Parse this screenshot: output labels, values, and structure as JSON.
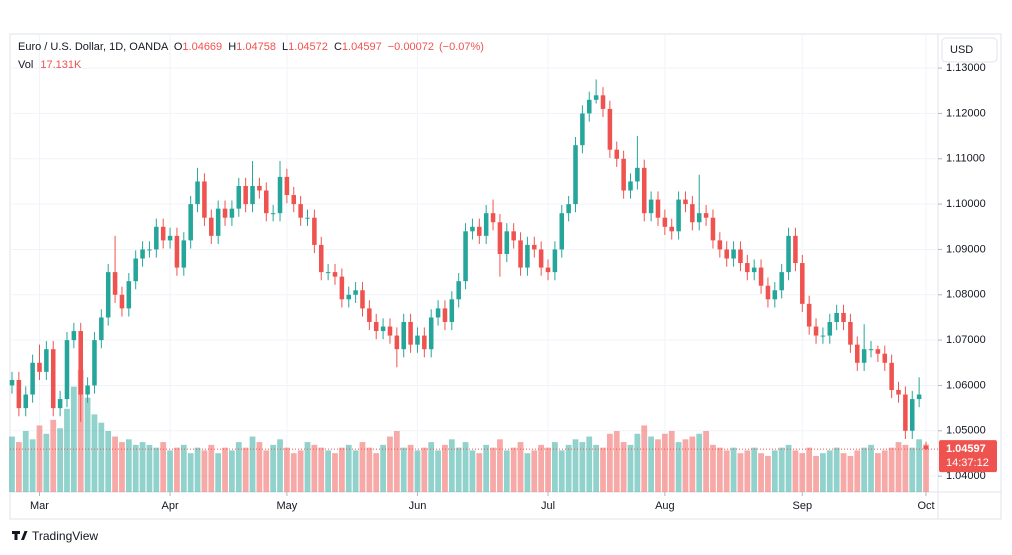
{
  "chart_data": {
    "type": "candlestick",
    "symbol": "Euro / U.S. Dollar, 1D, OANDA",
    "open_prefix": "O",
    "high_prefix": "H",
    "low_prefix": "L",
    "close_prefix": "C",
    "change": {
      "value": -0.00072,
      "label": "−0.00072"
    },
    "change_pct": {
      "value": -0.07,
      "label": "(−0.07%)"
    },
    "volume_prefix": "Vol",
    "volume_label": "17.131K",
    "currency": "USD",
    "countdown": "14:37:12",
    "brand": "TradingView",
    "up_color": "#26a69a",
    "down_color": "#ef5350",
    "grid": true,
    "ylim": [
      1.0365,
      1.1373
    ],
    "yticks": [
      {
        "value": 1.04,
        "label": "1.04000"
      },
      {
        "value": 1.05,
        "label": "1.05000"
      },
      {
        "value": 1.06,
        "label": "1.06000"
      },
      {
        "value": 1.07,
        "label": "1.07000"
      },
      {
        "value": 1.08,
        "label": "1.08000"
      },
      {
        "value": 1.09,
        "label": "1.09000"
      },
      {
        "value": 1.1,
        "label": "1.10000"
      },
      {
        "value": 1.11,
        "label": "1.11000"
      },
      {
        "value": 1.12,
        "label": "1.12000"
      },
      {
        "value": 1.13,
        "label": "1.13000"
      }
    ],
    "xticks": [
      {
        "value": 4,
        "label": "Mar"
      },
      {
        "value": 23,
        "label": "Apr"
      },
      {
        "value": 40,
        "label": "May"
      },
      {
        "value": 59,
        "label": "Jun"
      },
      {
        "value": 78,
        "label": "Jul"
      },
      {
        "value": 95,
        "label": "Aug"
      },
      {
        "value": 115,
        "label": "Sep"
      },
      {
        "value": 133,
        "label": "Oct"
      }
    ],
    "open": [
      1.06,
      1.0612,
      1.055,
      1.058,
      1.065,
      1.063,
      1.068,
      1.055,
      1.057,
      1.07,
      1.072,
      1.058,
      1.06,
      1.07,
      1.075,
      1.085,
      1.08,
      1.077,
      1.083,
      1.088,
      1.09,
      1.09,
      1.095,
      1.092,
      1.093,
      1.086,
      1.092,
      1.1,
      1.105,
      1.097,
      1.093,
      1.099,
      1.097,
      1.099,
      1.104,
      1.1,
      1.104,
      1.103,
      1.098,
      1.098,
      1.106,
      1.102,
      1.1,
      1.097,
      1.097,
      1.091,
      1.085,
      1.085,
      1.084,
      1.079,
      1.08,
      1.081,
      1.077,
      1.074,
      1.072,
      1.073,
      1.071,
      1.068,
      1.074,
      1.069,
      1.071,
      1.068,
      1.075,
      1.077,
      1.074,
      1.079,
      1.083,
      1.094,
      1.095,
      1.093,
      1.098,
      1.096,
      1.089,
      1.094,
      1.092,
      1.086,
      1.091,
      1.09,
      1.086,
      1.085,
      1.09,
      1.098,
      1.1,
      1.113,
      1.12,
      1.123,
      1.124,
      1.121,
      1.112,
      1.11,
      1.103,
      1.105,
      1.108,
      1.098,
      1.101,
      1.097,
      1.095,
      1.094,
      1.101,
      1.1,
      1.096,
      1.098,
      1.097,
      1.092,
      1.09,
      1.088,
      1.09,
      1.087,
      1.085,
      1.086,
      1.082,
      1.079,
      1.081,
      1.085,
      1.093,
      1.087,
      1.078,
      1.073,
      1.071,
      1.071,
      1.074,
      1.076,
      1.074,
      1.069,
      1.065,
      1.068,
      1.068,
      1.067,
      1.065,
      1.059,
      1.058,
      1.05,
      1.057,
      1.04669
    ],
    "high": [
      1.063,
      1.063,
      1.0598,
      1.0668,
      1.069,
      1.0698,
      1.0698,
      1.0588,
      1.0718,
      1.0738,
      1.0738,
      1.0618,
      1.0718,
      1.0768,
      1.0868,
      1.093,
      1.0818,
      1.0848,
      1.0898,
      1.0918,
      1.0918,
      1.0968,
      1.0968,
      1.0948,
      1.0948,
      1.0938,
      1.1018,
      1.108,
      1.1068,
      1.0988,
      1.1008,
      1.1008,
      1.1008,
      1.1058,
      1.1058,
      1.1095,
      1.1058,
      1.1048,
      1.0998,
      1.1095,
      1.1078,
      1.1038,
      1.1018,
      1.0988,
      1.0988,
      1.0928,
      1.0868,
      1.0868,
      1.0858,
      1.0818,
      1.0828,
      1.0828,
      1.0788,
      1.0758,
      1.0748,
      1.0748,
      1.0728,
      1.0758,
      1.0758,
      1.0728,
      1.0728,
      1.0768,
      1.0788,
      1.0788,
      1.0808,
      1.0848,
      1.0958,
      1.0968,
      1.0968,
      1.0998,
      1.101,
      1.0978,
      1.0958,
      1.0958,
      1.0938,
      1.0928,
      1.0928,
      1.0918,
      1.0878,
      1.0918,
      1.0998,
      1.1018,
      1.1148,
      1.1218,
      1.1248,
      1.1275,
      1.1258,
      1.1228,
      1.1138,
      1.1118,
      1.1068,
      1.115,
      1.1098,
      1.1028,
      1.1028,
      1.0988,
      1.0968,
      1.1028,
      1.1028,
      1.1018,
      1.1065,
      1.0998,
      1.0988,
      1.0938,
      1.0918,
      1.0918,
      1.0918,
      1.0888,
      1.0878,
      1.0878,
      1.0838,
      1.0828,
      1.0868,
      1.0948,
      1.0948,
      1.0888,
      1.0798,
      1.0748,
      1.0728,
      1.0758,
      1.0778,
      1.0778,
      1.0758,
      1.0708,
      1.0735,
      1.0698,
      1.0688,
      1.0688,
      1.0668,
      1.0608,
      1.0598,
      1.0588,
      1.0618,
      1.04758
    ],
    "low": [
      1.0582,
      1.0532,
      1.0532,
      1.0562,
      1.0612,
      1.0612,
      1.0532,
      1.0532,
      1.0552,
      1.0682,
      1.052,
      1.0562,
      1.0582,
      1.0682,
      1.0732,
      1.0782,
      1.0752,
      1.0752,
      1.0812,
      1.0862,
      1.0882,
      1.0882,
      1.0902,
      1.0902,
      1.0842,
      1.0842,
      1.0902,
      1.0982,
      1.0952,
      1.0912,
      1.0912,
      1.0952,
      1.0952,
      1.0972,
      1.0982,
      1.0982,
      1.1012,
      1.0962,
      1.0962,
      1.0962,
      1.1002,
      1.0982,
      1.0952,
      1.0952,
      1.0892,
      1.0832,
      1.0832,
      1.0822,
      1.0772,
      1.0772,
      1.0782,
      1.0752,
      1.0722,
      1.0702,
      1.0702,
      1.0692,
      1.064,
      1.0662,
      1.0672,
      1.0672,
      1.0662,
      1.0662,
      1.0732,
      1.0722,
      1.0722,
      1.0772,
      1.0812,
      1.0922,
      1.0912,
      1.0912,
      1.0942,
      1.084,
      1.0872,
      1.0902,
      1.0842,
      1.0842,
      1.0882,
      1.0842,
      1.0832,
      1.0832,
      1.0882,
      1.0962,
      1.0982,
      1.1112,
      1.1182,
      1.1222,
      1.1192,
      1.1102,
      1.1082,
      1.1012,
      1.1012,
      1.1032,
      1.0962,
      1.0962,
      1.0952,
      1.0932,
      1.0922,
      1.0922,
      1.0982,
      1.0942,
      1.0942,
      1.0952,
      1.0902,
      1.0882,
      1.0862,
      1.0862,
      1.0852,
      1.0832,
      1.0832,
      1.0802,
      1.0772,
      1.0772,
      1.0792,
      1.0832,
      1.0852,
      1.0762,
      1.0712,
      1.0692,
      1.0692,
      1.0692,
      1.0722,
      1.0722,
      1.0672,
      1.0632,
      1.0632,
      1.0662,
      1.0652,
      1.0632,
      1.0572,
      1.0562,
      1.0482,
      1.0482,
      1.0552,
      1.04572
    ],
    "close": [
      1.0612,
      1.055,
      1.058,
      1.065,
      1.063,
      1.068,
      1.055,
      1.057,
      1.07,
      1.072,
      1.058,
      1.06,
      1.07,
      1.075,
      1.085,
      1.08,
      1.077,
      1.083,
      1.088,
      1.09,
      1.09,
      1.095,
      1.092,
      1.093,
      1.086,
      1.092,
      1.1,
      1.105,
      1.097,
      1.093,
      1.099,
      1.097,
      1.099,
      1.104,
      1.1,
      1.104,
      1.103,
      1.098,
      1.098,
      1.106,
      1.102,
      1.1,
      1.097,
      1.097,
      1.091,
      1.085,
      1.085,
      1.084,
      1.079,
      1.08,
      1.081,
      1.077,
      1.074,
      1.072,
      1.073,
      1.071,
      1.068,
      1.074,
      1.069,
      1.071,
      1.068,
      1.075,
      1.077,
      1.074,
      1.079,
      1.083,
      1.094,
      1.095,
      1.093,
      1.098,
      1.096,
      1.089,
      1.094,
      1.092,
      1.086,
      1.091,
      1.09,
      1.086,
      1.085,
      1.09,
      1.098,
      1.1,
      1.113,
      1.12,
      1.123,
      1.124,
      1.121,
      1.112,
      1.11,
      1.103,
      1.105,
      1.108,
      1.098,
      1.101,
      1.097,
      1.095,
      1.094,
      1.101,
      1.1,
      1.096,
      1.098,
      1.097,
      1.092,
      1.09,
      1.088,
      1.09,
      1.087,
      1.085,
      1.086,
      1.082,
      1.079,
      1.081,
      1.085,
      1.093,
      1.087,
      1.078,
      1.073,
      1.071,
      1.071,
      1.074,
      1.076,
      1.074,
      1.069,
      1.065,
      1.068,
      1.068,
      1.067,
      1.065,
      1.059,
      1.058,
      1.05,
      1.057,
      1.058,
      1.04597
    ],
    "volume": [
      20,
      18,
      22,
      19,
      24,
      21,
      26,
      23,
      30,
      38,
      44,
      34,
      28,
      25,
      22,
      20,
      18,
      19,
      17,
      18,
      17,
      16,
      18,
      15,
      16,
      17,
      14,
      16,
      15,
      17,
      14,
      16,
      15,
      18,
      16,
      20,
      18,
      15,
      17,
      19,
      16,
      14,
      15,
      18,
      17,
      16,
      15,
      14,
      16,
      17,
      15,
      18,
      16,
      14,
      17,
      20,
      22,
      16,
      17,
      15,
      16,
      18,
      15,
      17,
      19,
      16,
      18,
      15,
      14,
      17,
      16,
      19,
      15,
      16,
      18,
      14,
      15,
      17,
      16,
      18,
      15,
      17,
      19,
      18,
      20,
      17,
      16,
      21,
      22,
      18,
      17,
      21,
      24,
      20,
      19,
      21,
      22,
      18,
      19,
      20,
      21,
      22,
      17,
      16,
      15,
      16,
      14,
      15,
      16,
      14,
      13,
      15,
      16,
      17,
      15,
      14,
      16,
      13,
      14,
      15,
      16,
      14,
      13,
      15,
      16,
      17,
      14,
      15,
      16,
      18,
      17,
      16,
      19,
      17.131
    ]
  }
}
